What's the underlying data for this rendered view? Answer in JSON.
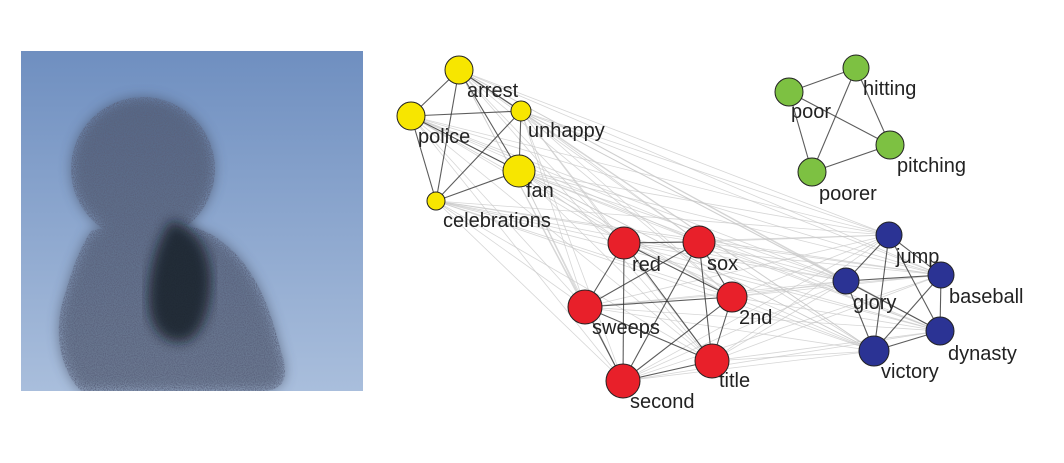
{
  "colors": {
    "yellow": "#f7e600",
    "green": "#7dc142",
    "red": "#e8202a",
    "blue": "#2b3394",
    "edge_strong": "#333333",
    "edge_weak": "#c8c8c8",
    "sky_top": "#6f8fc0",
    "sky_bottom": "#a9bedc"
  },
  "photo": {
    "icon": "starling-murmuration-photo"
  },
  "graph": {
    "groups": [
      {
        "id": "yellow",
        "color_key": "yellow",
        "nodes": [
          {
            "id": "arrest",
            "label": "arrest"
          },
          {
            "id": "unhappy",
            "label": "unhappy"
          },
          {
            "id": "police",
            "label": "police"
          },
          {
            "id": "fan",
            "label": "fan"
          },
          {
            "id": "celebrations",
            "label": "celebrations"
          }
        ]
      },
      {
        "id": "green",
        "color_key": "green",
        "nodes": [
          {
            "id": "hitting",
            "label": "hitting"
          },
          {
            "id": "poor",
            "label": "poor"
          },
          {
            "id": "pitching",
            "label": "pitching"
          },
          {
            "id": "poorer",
            "label": "poorer"
          }
        ]
      },
      {
        "id": "red",
        "color_key": "red",
        "nodes": [
          {
            "id": "red",
            "label": "red"
          },
          {
            "id": "sox",
            "label": "sox"
          },
          {
            "id": "sweeps",
            "label": "sweeps"
          },
          {
            "id": "2nd",
            "label": "2nd"
          },
          {
            "id": "title",
            "label": "title"
          },
          {
            "id": "second",
            "label": "second"
          }
        ]
      },
      {
        "id": "blue",
        "color_key": "blue",
        "nodes": [
          {
            "id": "jump",
            "label": "jump"
          },
          {
            "id": "glory",
            "label": "glory"
          },
          {
            "id": "baseball",
            "label": "baseball"
          },
          {
            "id": "victory",
            "label": "victory"
          },
          {
            "id": "dynasty",
            "label": "dynasty"
          }
        ]
      }
    ]
  }
}
